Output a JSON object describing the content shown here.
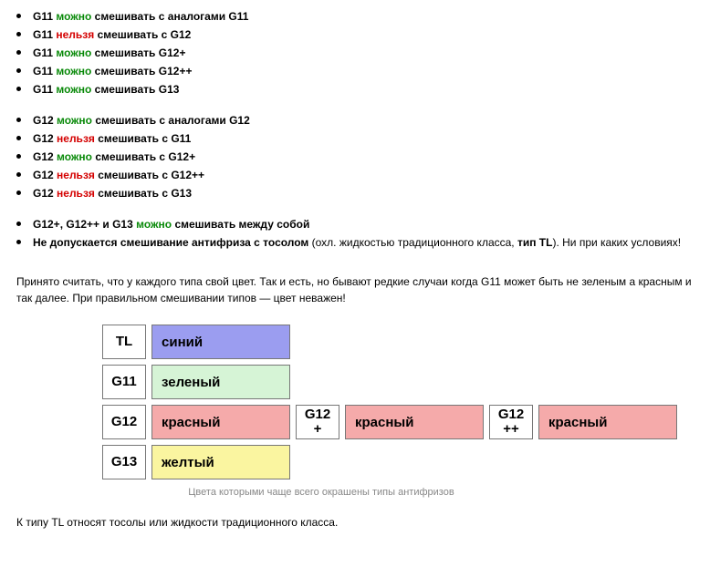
{
  "colors": {
    "ok": "#0a8a0a",
    "no": "#d40000",
    "text": "#000000",
    "caption": "#888888"
  },
  "blocks": [
    {
      "items": [
        {
          "prefix": "G11",
          "verdict": "можно",
          "verdict_class": "ok",
          "suffix": "смешивать с аналогами G11"
        },
        {
          "prefix": "G11",
          "verdict": "нельзя",
          "verdict_class": "no",
          "suffix": "смешивать с G12"
        },
        {
          "prefix": "G11",
          "verdict": "можно",
          "verdict_class": "ok",
          "suffix": "смешивать G12+"
        },
        {
          "prefix": "G11",
          "verdict": "можно",
          "verdict_class": "ok",
          "suffix": "смешивать G12++"
        },
        {
          "prefix": "G11",
          "verdict": "можно",
          "verdict_class": "ok",
          "suffix": "смешивать G13"
        }
      ]
    },
    {
      "items": [
        {
          "prefix": "G12",
          "verdict": "можно",
          "verdict_class": "ok",
          "suffix": "смешивать с аналогами G12"
        },
        {
          "prefix": "G12",
          "verdict": "нельзя",
          "verdict_class": "no",
          "suffix": "смешивать с G11"
        },
        {
          "prefix": "G12",
          "verdict": "можно",
          "verdict_class": "ok",
          "suffix": "смешивать с G12+"
        },
        {
          "prefix": "G12",
          "verdict": "нельзя",
          "verdict_class": "no",
          "suffix": "смешивать с G12++"
        },
        {
          "prefix": "G12",
          "verdict": "нельзя",
          "verdict_class": "no",
          "suffix": "смешивать с G13"
        }
      ]
    },
    {
      "items": [
        {
          "prefix": "G12+, G12++ и G13",
          "verdict": "можно",
          "verdict_class": "ok",
          "suffix": "смешивать между собой"
        },
        {
          "bold_full": "Не допускается смешивание антифриза с тосолом",
          "tail_plain": " (охл. жидкостью традиционного класса, ",
          "tail_bold": "тип TL",
          "tail_after": "). Ни при каких условиях!"
        }
      ]
    }
  ],
  "paragraph": "Принято считать, что у каждого типа свой цвет. Так и есть, но бывают редкие случаи когда G11 может быть не зеленым а красным и так далее. При правильном смешивании типов — цвет неважен!",
  "color_table": {
    "rows": [
      {
        "cells": [
          {
            "label": "TL"
          },
          {
            "color_name": "синий",
            "bg": "#9b9df0"
          }
        ]
      },
      {
        "cells": [
          {
            "label": "G11"
          },
          {
            "color_name": "зеленый",
            "bg": "#d6f4d6"
          }
        ]
      },
      {
        "cells": [
          {
            "label": "G12"
          },
          {
            "color_name": "красный",
            "bg": "#f5aaaa"
          },
          {
            "label": "G12\n+"
          },
          {
            "color_name": "красный",
            "bg": "#f5aaaa"
          },
          {
            "label": "G12\n++"
          },
          {
            "color_name": "красный",
            "bg": "#f5aaaa"
          }
        ]
      },
      {
        "cells": [
          {
            "label": "G13"
          },
          {
            "color_name": "желтый",
            "bg": "#faf5a0"
          }
        ]
      }
    ],
    "caption": "Цвета которыми чаще всего окрашены типы антифризов"
  },
  "footnote": "К типу TL относят тосолы или жидкости традиционного класса."
}
